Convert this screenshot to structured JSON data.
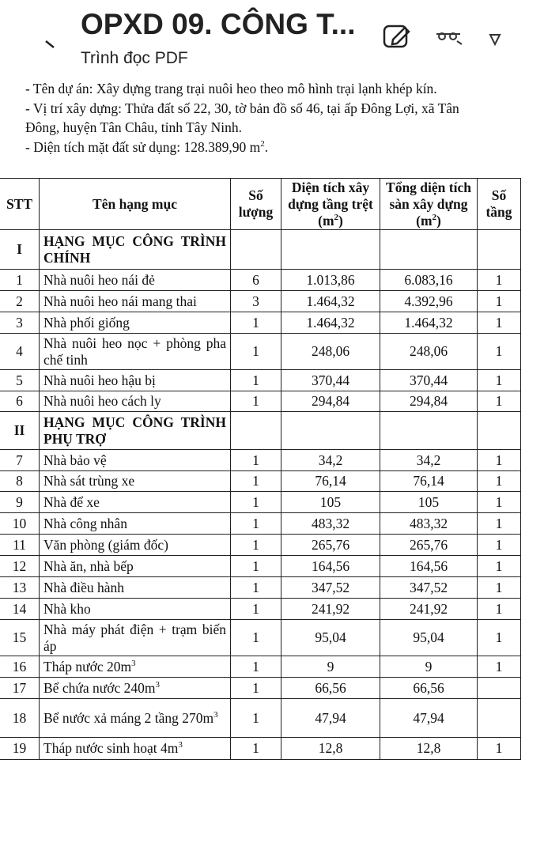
{
  "header": {
    "title": "OPXD 09. CÔNG T...",
    "subtitle": "Trình đọc PDF"
  },
  "document": {
    "lines": [
      "- Tên dự án: Xây dựng trang trại nuôi heo theo mô hình trại lạnh khép kín.",
      "- Vị trí xây dựng: Thửa đất số 22, 30, tờ bản đồ số 46, tại ấp Đông Lợi, xã Tân",
      "Đông, huyện Tân Châu, tỉnh Tây Ninh.",
      {
        "text": "- Diện tích mặt đất sử dụng: 128.389,90 m",
        "sup": "2",
        "after": "."
      }
    ]
  },
  "table": {
    "columns": [
      "STT",
      "Tên hạng mục",
      "Số lượng",
      {
        "text": "Diện tích xây dựng tầng trệt (m",
        "sup": "2",
        "after": ")"
      },
      {
        "text": "Tổng diện tích sàn xây dựng (m",
        "sup": "2",
        "after": ")"
      },
      "Số tầng"
    ],
    "rows": [
      [
        "I",
        "HẠNG MỤC CÔNG TRÌNH CHÍNH",
        null,
        null,
        null,
        null
      ],
      [
        "1",
        "Nhà nuôi heo nái đẻ",
        "6",
        "1.013,86",
        "6.083,16",
        "1"
      ],
      [
        "2",
        "Nhà nuôi heo nái mang thai",
        "3",
        "1.464,32",
        "4.392,96",
        "1"
      ],
      [
        "3",
        "Nhà phối giống",
        "1",
        "1.464,32",
        "1.464,32",
        "1"
      ],
      [
        "4",
        "Nhà nuôi heo nọc + phòng pha chế tinh",
        "1",
        "248,06",
        "248,06",
        "1"
      ],
      [
        "5",
        "Nhà nuôi heo hậu bị",
        "1",
        "370,44",
        "370,44",
        "1"
      ],
      [
        "6",
        "Nhà nuôi heo cách ly",
        "1",
        "294,84",
        "294,84",
        "1"
      ],
      [
        "II",
        "HẠNG MỤC CÔNG TRÌNH PHỤ TRỢ",
        null,
        null,
        null,
        null
      ],
      [
        "7",
        "Nhà bảo vệ",
        "1",
        "34,2",
        "34,2",
        "1"
      ],
      [
        "8",
        "Nhà sát trùng xe",
        "1",
        "76,14",
        "76,14",
        "1"
      ],
      [
        "9",
        "Nhà để xe",
        "1",
        "105",
        "105",
        "1"
      ],
      [
        "10",
        "Nhà công nhân",
        "1",
        "483,32",
        "483,32",
        "1"
      ],
      [
        "11",
        "Văn phòng (giám đốc)",
        "1",
        "265,76",
        "265,76",
        "1"
      ],
      [
        "12",
        "Nhà ăn, nhà bếp",
        "1",
        "164,56",
        "164,56",
        "1"
      ],
      [
        "13",
        "Nhà điều hành",
        "1",
        "347,52",
        "347,52",
        "1"
      ],
      [
        "14",
        "Nhà kho",
        "1",
        "241,92",
        "241,92",
        "1"
      ],
      [
        "15",
        "Nhà máy phát điện + trạm biến áp",
        "1",
        "95,04",
        "95,04",
        "1"
      ],
      [
        "16",
        {
          "text": "Tháp nước 20m",
          "sup": "3"
        },
        "1",
        "9",
        "9",
        "1"
      ],
      [
        "17",
        {
          "text": "Bể chứa nước 240m",
          "sup": "3"
        },
        "1",
        "66,56",
        "66,56",
        null
      ],
      [
        "18",
        {
          "text": "Bể nước xả máng 2 tầng 270m",
          "sup": "3"
        },
        "1",
        "47,94",
        "47,94",
        null
      ],
      [
        "19",
        {
          "text": "Tháp nước sinh hoạt 4m",
          "sup": "3"
        },
        "1",
        "12,8",
        "12,8",
        "1"
      ]
    ]
  }
}
